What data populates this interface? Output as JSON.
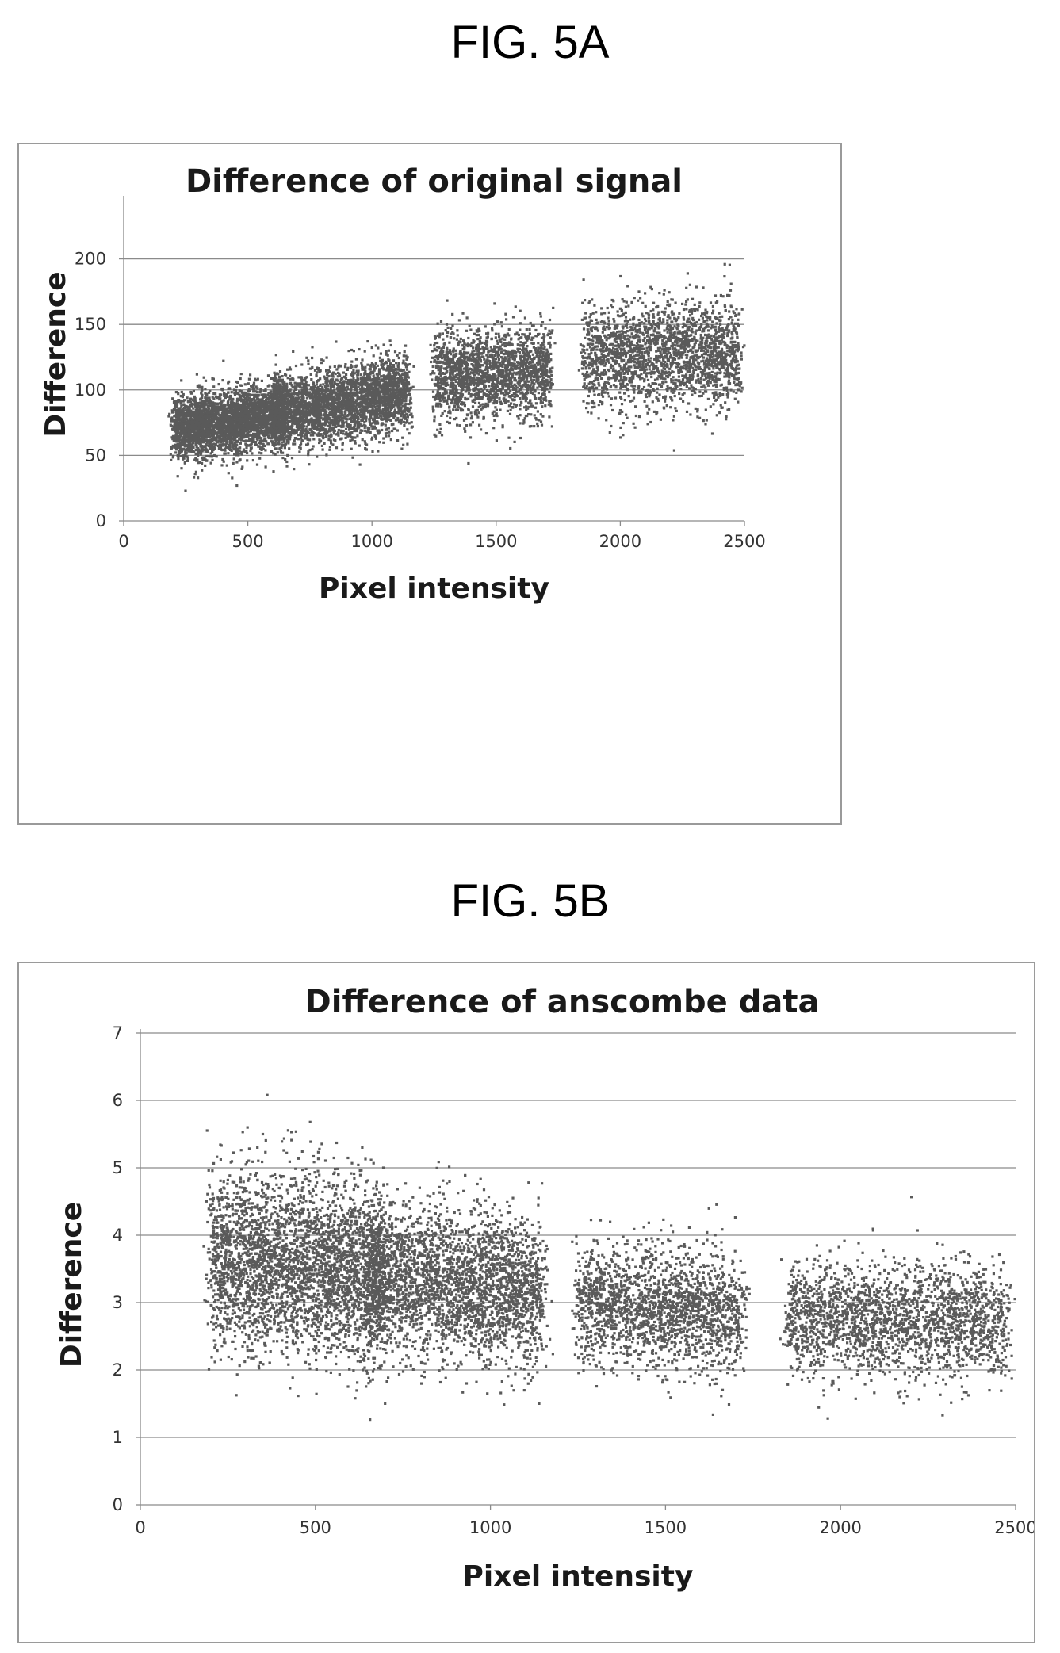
{
  "figures": {
    "a_label": "FIG. 5A",
    "b_label": "FIG. 5B"
  },
  "chart_data": [
    {
      "type": "scatter",
      "title": "Difference of original signal",
      "xlabel": "Pixel intensity",
      "ylabel": "Difference",
      "xlim": [
        0,
        2500
      ],
      "ylim": [
        0,
        230
      ],
      "xticks": [
        "0",
        "500",
        "1000",
        "1500",
        "2000",
        "2500"
      ],
      "yticks": [
        "0",
        "50",
        "100",
        "150",
        "200"
      ],
      "grid": "horizontal",
      "marker_color": "#5a5a5a",
      "clusters": [
        {
          "x_range": [
            200,
            650
          ],
          "y_center_at_start": 70,
          "y_center_at_end": 82,
          "y_spread": 12,
          "points": 3200
        },
        {
          "x_range": [
            600,
            1150
          ],
          "y_center_at_start": 82,
          "y_center_at_end": 98,
          "y_spread": 14,
          "points": 3200
        },
        {
          "x_range": [
            1250,
            1720
          ],
          "y_center_at_start": 110,
          "y_center_at_end": 115,
          "y_spread": 17,
          "points": 2000
        },
        {
          "x_range": [
            1850,
            2480
          ],
          "y_center_at_start": 125,
          "y_center_at_end": 128,
          "y_spread": 20,
          "points": 2200
        }
      ]
    },
    {
      "type": "scatter",
      "title": "Difference of anscombe data",
      "xlabel": "Pixel intensity",
      "ylabel": "Difference",
      "xlim": [
        0,
        2500
      ],
      "ylim": [
        0,
        7
      ],
      "xticks": [
        "0",
        "500",
        "1000",
        "1500",
        "2000",
        "2500"
      ],
      "yticks": [
        "0",
        "1",
        "2",
        "3",
        "4",
        "5",
        "6",
        "7"
      ],
      "grid": "horizontal",
      "marker_color": "#5a5a5a",
      "clusters": [
        {
          "x_range": [
            200,
            700
          ],
          "y_center_at_start": 3.7,
          "y_center_at_end": 3.4,
          "y_spread": 0.65,
          "points": 3600
        },
        {
          "x_range": [
            650,
            1150
          ],
          "y_center_at_start": 3.4,
          "y_center_at_end": 3.1,
          "y_spread": 0.55,
          "points": 3000
        },
        {
          "x_range": [
            1250,
            1720
          ],
          "y_center_at_start": 3.0,
          "y_center_at_end": 2.85,
          "y_spread": 0.45,
          "points": 2000
        },
        {
          "x_range": [
            1850,
            2480
          ],
          "y_center_at_start": 2.8,
          "y_center_at_end": 2.7,
          "y_spread": 0.42,
          "points": 2200
        }
      ]
    }
  ]
}
